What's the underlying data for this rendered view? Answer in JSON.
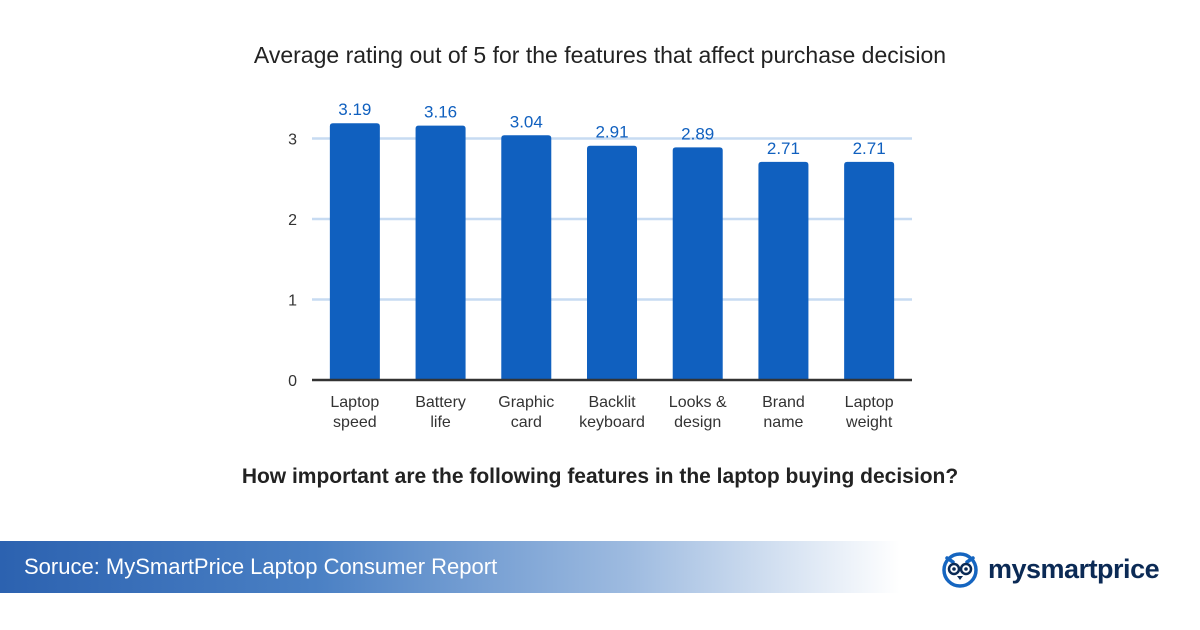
{
  "chart_data": {
    "type": "bar",
    "title": "Average rating out of 5 for the features that affect purchase decision",
    "categories": [
      [
        "Laptop",
        "speed"
      ],
      [
        "Battery",
        "life"
      ],
      [
        "Graphic",
        "card"
      ],
      [
        "Backlit",
        "keyboard"
      ],
      [
        "Looks &",
        "design"
      ],
      [
        "Brand",
        "name"
      ],
      [
        "Laptop",
        "weight"
      ]
    ],
    "values": [
      3.19,
      3.16,
      3.04,
      2.91,
      2.89,
      2.71,
      2.71
    ],
    "value_labels": [
      "3.19",
      "3.16",
      "3.04",
      "2.91",
      "2.89",
      "2.71",
      "2.71"
    ],
    "yticks": [
      0,
      1,
      2,
      3
    ],
    "ylim": [
      0,
      3.3
    ],
    "grid": true,
    "bar_color": "#1060bf",
    "label_color": "#1060bf",
    "grid_color": "#c7dbf2"
  },
  "question": "How important are the following features in the laptop buying decision?",
  "source": "Soruce: MySmartPrice Laptop Consumer Report",
  "brand": {
    "name": "mysmartprice",
    "icon": "owl-logo-icon",
    "color": "#0b2a55",
    "accent": "#1565c0"
  }
}
